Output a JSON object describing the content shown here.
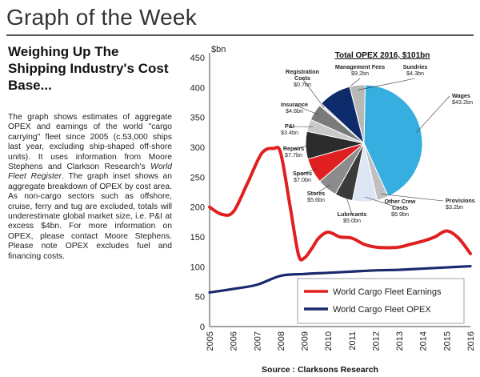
{
  "page": {
    "title": "Graph of the Week",
    "headline": "Weighing Up The Shipping Industry's Cost Base...",
    "body_1": "The graph shows estimates of aggregate OPEX and earnings of the world \"cargo carrying\" fleet since 2005 (c.53,000 ships last year, excluding ship-shaped off-shore units). It uses information from Moore Stephens and Clarkson Research's ",
    "body_italic": "World Fleet Register",
    "body_2": ". The graph inset shows an aggregate breakdown of OPEX by cost area. As non-cargo sectors such as offshore, cruise, ferry and tug are excluded, totals will underestimate global market size, i.e. P&I at excess $4bn. For more information on OPEX, please contact Moore Stephens. Please note OPEX excludes fuel and financing costs.",
    "source": "Source : Clarksons Research"
  },
  "chart_data": [
    {
      "type": "line",
      "ylabel": "$bn",
      "ylim": [
        0,
        450
      ],
      "yticks": [
        "0",
        "50",
        "100",
        "150",
        "200",
        "250",
        "300",
        "350",
        "400",
        "450"
      ],
      "x": [
        2005,
        2006,
        2007,
        2008,
        2009,
        2010,
        2011,
        2012,
        2013,
        2014,
        2015,
        2016
      ],
      "xticks": [
        "2005",
        "2006",
        "2007",
        "2008",
        "2009",
        "2010",
        "2011",
        "2012",
        "2013",
        "2014",
        "2015",
        "2016"
      ],
      "grid": false,
      "legend": "bottom-right",
      "series": [
        {
          "name": "World Cargo Fleet Earnings",
          "color": "#e02020",
          "x": [
            2005,
            2005.5,
            2006,
            2006.6,
            2007.2,
            2007.7,
            2008,
            2008.4,
            2008.75,
            2009,
            2009.3,
            2009.6,
            2010,
            2010.5,
            2011,
            2011.5,
            2012,
            2012.5,
            2013,
            2013.5,
            2014,
            2014.5,
            2015,
            2015.5,
            2016
          ],
          "values": [
            200,
            188,
            192,
            240,
            290,
            298,
            290,
            200,
            120,
            115,
            130,
            148,
            158,
            150,
            148,
            138,
            133,
            132,
            133,
            138,
            143,
            150,
            160,
            148,
            122
          ]
        },
        {
          "name": "World Cargo Fleet OPEX",
          "color": "#1a2a6c",
          "x": [
            2005,
            2006,
            2007,
            2008,
            2009,
            2010,
            2011,
            2012,
            2013,
            2014,
            2015,
            2016
          ],
          "values": [
            57,
            63,
            70,
            85,
            88,
            90,
            92,
            94,
            95,
            97,
            99,
            101
          ]
        }
      ]
    },
    {
      "type": "pie",
      "title": "Total OPEX 2016, $101bn",
      "unit": "$bn",
      "slices": [
        {
          "label": "Wages",
          "value_label": "$43.2bn",
          "value": 43.2,
          "color": "#36aee0"
        },
        {
          "label": "Provisions",
          "value_label": "$3.2bn",
          "value": 3.2,
          "color": "#bfbfbf"
        },
        {
          "label": "Other Crew Costs",
          "value_label": "$6.9bn",
          "value": 6.9,
          "color": "#dde7f3"
        },
        {
          "label": "Lubricants",
          "value_label": "$5.0bn",
          "value": 5.0,
          "color": "#3b3b3b"
        },
        {
          "label": "Stores",
          "value_label": "$5.6bn",
          "value": 5.6,
          "color": "#8c8c8c"
        },
        {
          "label": "Spares",
          "value_label": "$7.0bn",
          "value": 7.0,
          "color": "#e02020"
        },
        {
          "label": "Repairs",
          "value_label": "$7.7bn",
          "value": 7.7,
          "color": "#2b2b2b"
        },
        {
          "label": "P&I",
          "value_label": "$3.4bn",
          "value": 3.4,
          "color": "#c9c9c9"
        },
        {
          "label": "Insurance",
          "value_label": "$4.6bn",
          "value": 4.6,
          "color": "#7a7a7a"
        },
        {
          "label": "Registration Costs",
          "value_label": "$0.7bn",
          "value": 0.7,
          "color": "#e0e0e0"
        },
        {
          "label": "Management Fees",
          "value_label": "$9.2bn",
          "value": 9.2,
          "color": "#0d2a6b"
        },
        {
          "label": "Sundries",
          "value_label": "$4.3bn",
          "value": 4.3,
          "color": "#b8b8b8"
        }
      ]
    }
  ]
}
